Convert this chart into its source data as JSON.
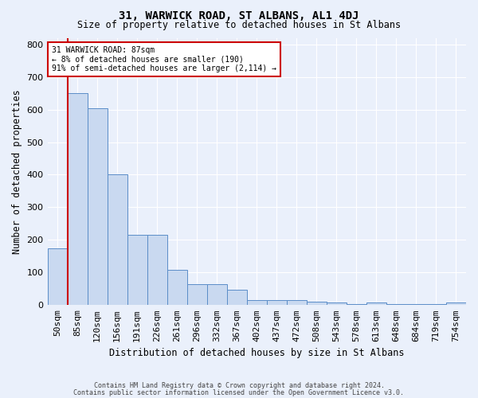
{
  "title": "31, WARWICK ROAD, ST ALBANS, AL1 4DJ",
  "subtitle": "Size of property relative to detached houses in St Albans",
  "xlabel": "Distribution of detached houses by size in St Albans",
  "ylabel": "Number of detached properties",
  "footnote1": "Contains HM Land Registry data © Crown copyright and database right 2024.",
  "footnote2": "Contains public sector information licensed under the Open Government Licence v3.0.",
  "categories": [
    "50sqm",
    "85sqm",
    "120sqm",
    "156sqm",
    "191sqm",
    "226sqm",
    "261sqm",
    "296sqm",
    "332sqm",
    "367sqm",
    "402sqm",
    "437sqm",
    "472sqm",
    "508sqm",
    "543sqm",
    "578sqm",
    "613sqm",
    "648sqm",
    "684sqm",
    "719sqm",
    "754sqm"
  ],
  "values": [
    175,
    650,
    605,
    400,
    215,
    215,
    107,
    65,
    65,
    47,
    15,
    15,
    15,
    10,
    7,
    3,
    7,
    3,
    3,
    3,
    7
  ],
  "bar_color": "#c9d9f0",
  "bar_edge_color": "#5b8dc8",
  "marker_label": "31 WARWICK ROAD: 87sqm",
  "annotation_line1": "← 8% of detached houses are smaller (190)",
  "annotation_line2": "91% of semi-detached houses are larger (2,114) →",
  "annotation_box_color": "#ffffff",
  "annotation_box_edge": "#cc0000",
  "vline_color": "#cc0000",
  "background_color": "#eaf0fb",
  "ylim": [
    0,
    820
  ],
  "yticks": [
    0,
    100,
    200,
    300,
    400,
    500,
    600,
    700,
    800
  ],
  "vline_x": 1.0
}
